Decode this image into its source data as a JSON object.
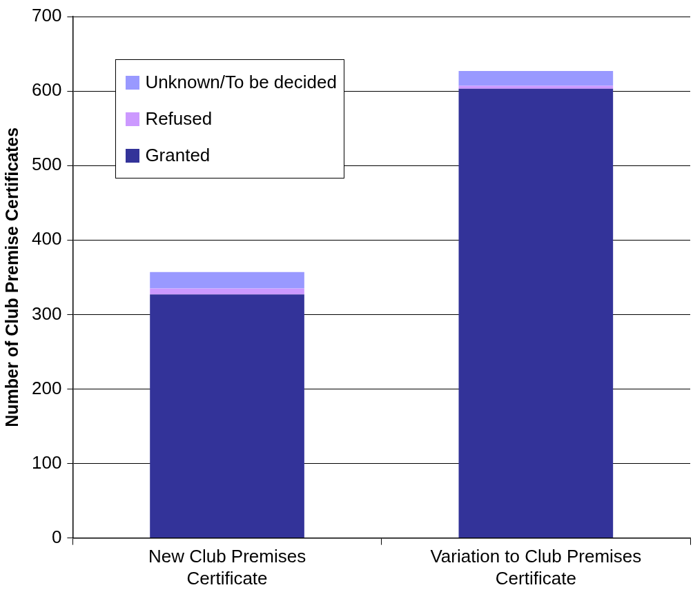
{
  "chart_data": {
    "type": "bar",
    "ylabel": "Number of Club Premise Certificates",
    "categories": [
      "New Club Premises Certificate",
      "Variation to Club Premises Certificate"
    ],
    "stacked": true,
    "series": [
      {
        "name": "Granted",
        "color": "#333399",
        "values": [
          327,
          603
        ]
      },
      {
        "name": "Refused",
        "color": "#cc99ff",
        "values": [
          8,
          4
        ]
      },
      {
        "name": "Unknown/To be decided",
        "color": "#9999ff",
        "values": [
          22,
          20
        ]
      }
    ],
    "ylim": [
      0,
      700
    ],
    "yticks": [
      0,
      100,
      200,
      300,
      400,
      500,
      600,
      700
    ],
    "grid": "y",
    "legend": "top left"
  }
}
